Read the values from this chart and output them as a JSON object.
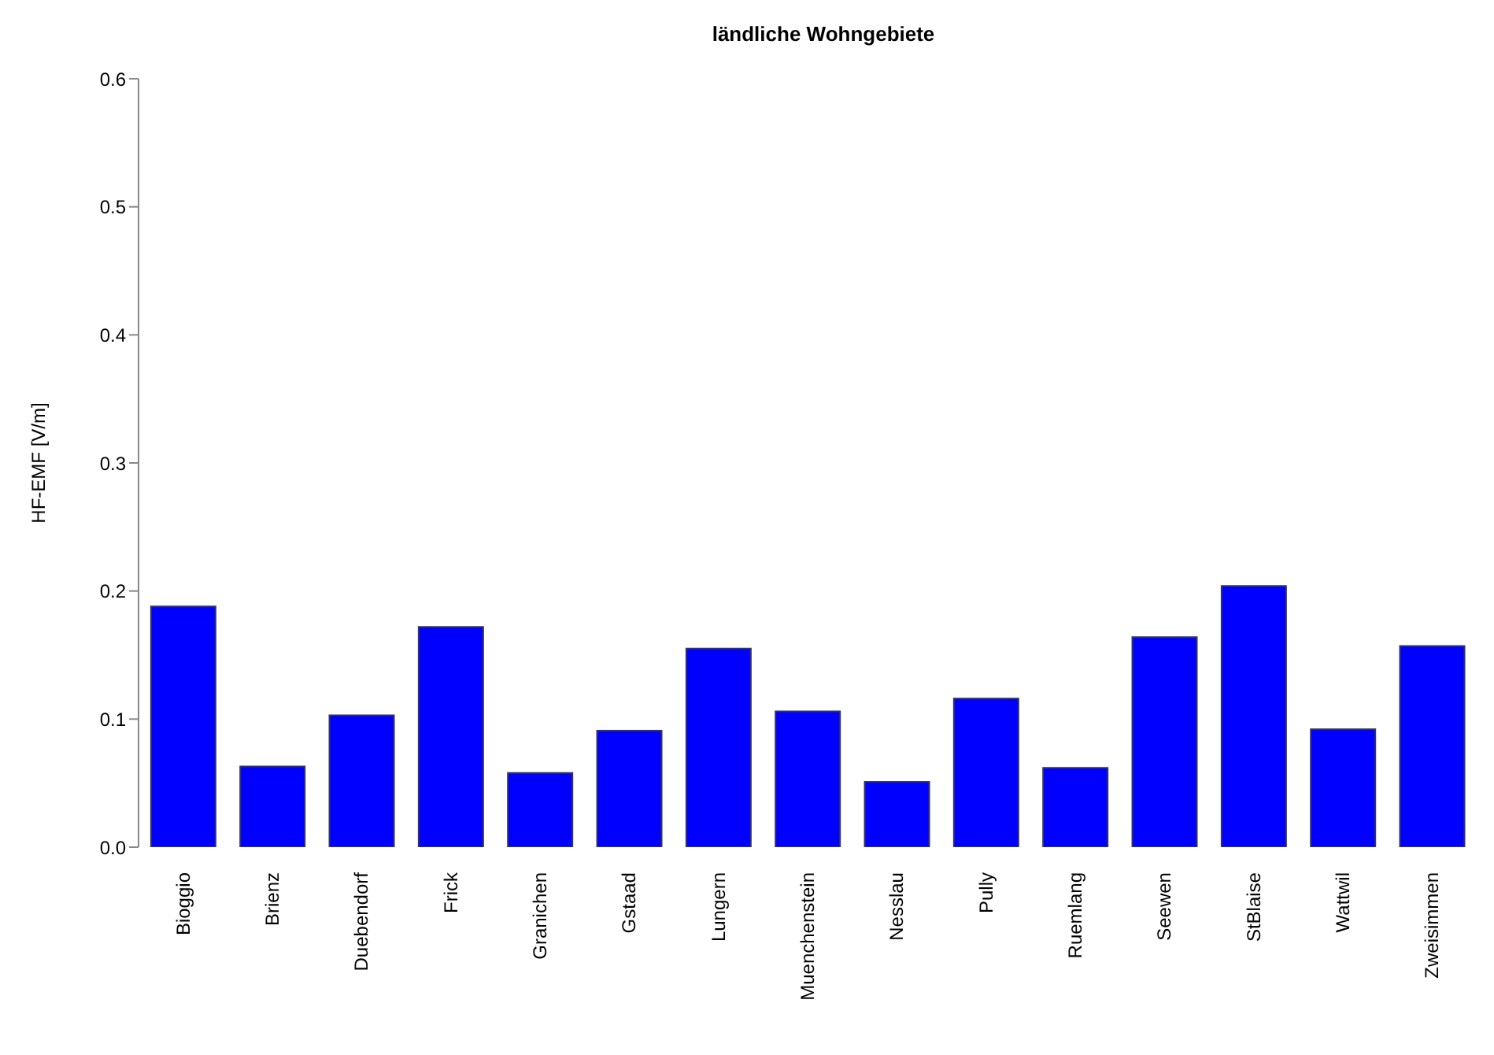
{
  "chart_data": {
    "type": "bar",
    "title": "ländliche Wohngebiete",
    "ylabel": "HF-EMF [V/m]",
    "categories": [
      "Bioggio",
      "Brienz",
      "Duebendorf",
      "Frick",
      "Granichen",
      "Gstaad",
      "Lungern",
      "Muenchenstein",
      "Nesslau",
      "Pully",
      "Ruemlang",
      "Seewen",
      "StBlaise",
      "Wattwil",
      "Zweisimmen"
    ],
    "values": [
      0.188,
      0.063,
      0.103,
      0.172,
      0.058,
      0.091,
      0.155,
      0.106,
      0.051,
      0.116,
      0.062,
      0.164,
      0.204,
      0.092,
      0.157
    ],
    "color": "#0000ff",
    "ylim": [
      0,
      0.6
    ],
    "yticks": [
      {
        "value": 0,
        "label": "0.0"
      },
      0.1,
      0.2,
      0.3,
      0.4,
      0.5,
      0.6
    ],
    "grid": false,
    "legend": false
  }
}
